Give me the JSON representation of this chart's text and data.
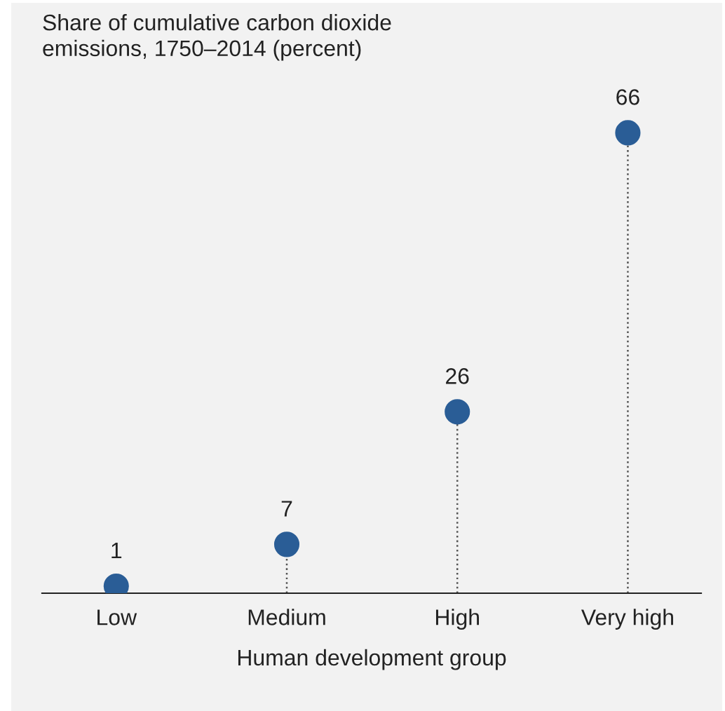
{
  "chart_data": {
    "type": "lollipop",
    "title": "Share of cumulative carbon dioxide\nemissions, 1750–2014 (percent)",
    "xlabel": "Human development group",
    "categories": [
      "Low",
      "Medium",
      "High",
      "Very high"
    ],
    "values": [
      1,
      7,
      26,
      66
    ],
    "color": "#2a5d96",
    "data_labels": true,
    "marker": "circle",
    "line_style": "dotted"
  }
}
